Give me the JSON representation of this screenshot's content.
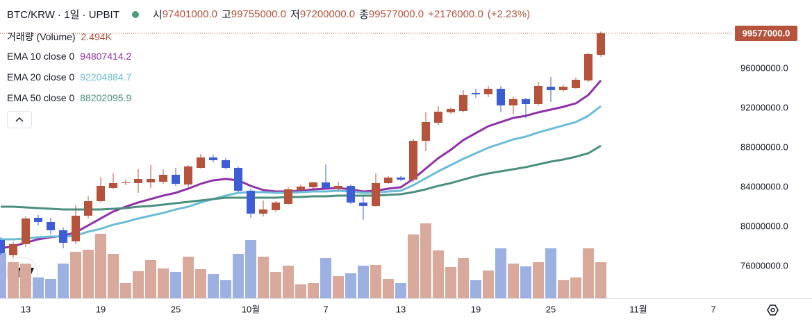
{
  "chart_data": {
    "type": "candlestick",
    "title": "BTC/KRW · 1일 · UPBIT",
    "categories": [
      null,
      null,
      "13",
      null,
      null,
      null,
      null,
      null,
      "19",
      null,
      null,
      null,
      null,
      null,
      "25",
      null,
      null,
      null,
      null,
      null,
      "10월",
      null,
      null,
      null,
      null,
      null,
      "7",
      null,
      null,
      null,
      null,
      null,
      "13",
      null,
      null,
      null,
      null,
      null,
      "19",
      null,
      null,
      null,
      null,
      null,
      "25",
      null,
      null,
      null,
      null,
      null,
      null,
      "11월",
      null,
      null,
      null,
      null,
      null,
      "7",
      null
    ],
    "open": [
      78667000,
      77123000,
      78246000,
      80912000,
      80491000,
      79649000,
      78526000,
      81123000,
      82597000,
      83930000,
      84421000,
      84421000,
      84491000,
      84561000,
      85263000,
      84281000,
      85965000,
      87018000,
      86737000,
      85965000,
      83649000,
      81333000,
      81684000,
      82316000,
      83719000,
      84000000,
      84491000,
      83860000,
      84140000,
      82456000,
      82105000,
      84421000,
      84983000,
      84772000,
      88702000,
      90526000,
      91579000,
      91719000,
      93544000,
      93404000,
      93965000,
      92281000,
      92912000,
      92421000,
      94175000,
      93825000,
      94035000,
      94807000,
      97401000,
      null,
      null,
      null,
      null,
      null,
      null,
      null,
      null,
      null,
      null
    ],
    "high": [
      78947000,
      78456000,
      81053000,
      81193000,
      80912000,
      79930000,
      82176000,
      83088000,
      85053000,
      85404000,
      84772000,
      85825000,
      86246000,
      85825000,
      85965000,
      86246000,
      87368000,
      87298000,
      86947000,
      86105000,
      83860000,
      82667000,
      82597000,
      84000000,
      84281000,
      84561000,
      86316000,
      84561000,
      84281000,
      83158000,
      85404000,
      85123000,
      85123000,
      88912000,
      91579000,
      92211000,
      92070000,
      93825000,
      93965000,
      94246000,
      94246000,
      93123000,
      93053000,
      94667000,
      95158000,
      94386000,
      95088000,
      97614000,
      99755000,
      null,
      null,
      null,
      null,
      null,
      null,
      null,
      null,
      null,
      null
    ],
    "low": [
      77123000,
      76842000,
      77965000,
      80140000,
      79228000,
      77825000,
      78246000,
      80842000,
      82456000,
      83790000,
      84211000,
      83439000,
      83930000,
      84351000,
      84140000,
      84000000,
      85895000,
      86526000,
      85825000,
      83509000,
      80912000,
      81053000,
      81474000,
      82246000,
      83579000,
      83860000,
      83860000,
      83649000,
      82316000,
      80702000,
      82035000,
      84351000,
      84632000,
      84561000,
      87649000,
      90316000,
      91439000,
      91579000,
      93053000,
      93123000,
      91579000,
      91368000,
      91018000,
      92281000,
      92632000,
      93684000,
      93965000,
      94667000,
      97200000,
      null,
      null,
      null,
      null,
      null,
      null,
      null,
      null,
      null,
      null
    ],
    "close": [
      77333000,
      78246000,
      80842000,
      80491000,
      79649000,
      78386000,
      81123000,
      82597000,
      84140000,
      84421000,
      84491000,
      84842000,
      84842000,
      85263000,
      84351000,
      86105000,
      87018000,
      86737000,
      85965000,
      83649000,
      81333000,
      81754000,
      82456000,
      83790000,
      84070000,
      84491000,
      83930000,
      84140000,
      82456000,
      82105000,
      84421000,
      84983000,
      84772000,
      88702000,
      90597000,
      91649000,
      91930000,
      93333000,
      93404000,
      93965000,
      92281000,
      92912000,
      92421000,
      94246000,
      93825000,
      94175000,
      94877000,
      97474000,
      99577000,
      null,
      null,
      null,
      null,
      null,
      null,
      null,
      null,
      null,
      null
    ],
    "ohlc_names": {
      "open": "시",
      "high": "고",
      "low": "저",
      "close": "종"
    },
    "ohlc_value_labels": {
      "open": "97401000.0",
      "high": "99755000.0",
      "low": "97200000.0",
      "close": "99577000.0"
    },
    "change": 2176000,
    "change_label": "+2176000.0",
    "change_pct": 2.23,
    "change_pct_label": "(+2.23%)",
    "up_color": "#b5533c",
    "down_color": "#3c5dd6",
    "volume": {
      "name": "거래량 (Volume)",
      "up_color": "#d9a99b",
      "down_color": "#9cb1e2",
      "values": [
        3120,
        2496,
        2400,
        1440,
        1344,
        2400,
        3216,
        3360,
        4464,
        3072,
        1056,
        1872,
        2640,
        2064,
        1824,
        2880,
        2016,
        1680,
        1248,
        3072,
        4032,
        2880,
        1824,
        2256,
        960,
        1056,
        2784,
        1536,
        1728,
        2256,
        2304,
        1344,
        1056,
        4416,
        5184,
        3312,
        2160,
        2784,
        1248,
        1920,
        3456,
        2400,
        2208,
        2496,
        3456,
        1248,
        1440,
        3456,
        2494,
        null,
        null,
        null,
        null,
        null,
        null,
        null,
        null,
        null,
        null
      ],
      "value_label": "2.494K"
    },
    "series": [
      {
        "name": "EMA 10 close 0",
        "color": "#9030a8",
        "value_label": "94807414.2",
        "values": [
          77825000,
          78035000,
          78386000,
          78737000,
          78947000,
          79088000,
          79439000,
          80140000,
          80842000,
          81544000,
          82035000,
          82456000,
          82807000,
          83158000,
          83439000,
          83860000,
          84351000,
          84702000,
          84842000,
          84702000,
          84140000,
          83719000,
          83579000,
          83579000,
          83649000,
          83790000,
          83860000,
          83930000,
          83790000,
          83579000,
          83649000,
          83860000,
          84000000,
          84842000,
          85895000,
          86947000,
          87790000,
          88772000,
          89474000,
          90175000,
          90597000,
          91018000,
          91228000,
          91579000,
          91860000,
          92140000,
          92491000,
          93333000,
          94807414.2,
          null,
          null,
          null,
          null,
          null,
          null,
          null,
          null,
          null,
          null
        ]
      },
      {
        "name": "EMA 20 close 0",
        "color": "#6bbcd6",
        "value_label": "92204884.7",
        "values": [
          78737000,
          78737000,
          78807000,
          78947000,
          79018000,
          79018000,
          79088000,
          79509000,
          79790000,
          80211000,
          80491000,
          80842000,
          81123000,
          81404000,
          81754000,
          82035000,
          82456000,
          82807000,
          83158000,
          83439000,
          83509000,
          83509000,
          83439000,
          83439000,
          83509000,
          83579000,
          83579000,
          83649000,
          83579000,
          83439000,
          83439000,
          83579000,
          83649000,
          84211000,
          84912000,
          85614000,
          86246000,
          86877000,
          87439000,
          88000000,
          88421000,
          88842000,
          89123000,
          89544000,
          89895000,
          90246000,
          90597000,
          91228000,
          92204884.7,
          null,
          null,
          null,
          null,
          null,
          null,
          null,
          null,
          null,
          null
        ]
      },
      {
        "name": "EMA 50 close 0",
        "color": "#4a8f7e",
        "value_label": "88202095.9",
        "values": [
          82035000,
          82035000,
          81965000,
          81895000,
          81825000,
          81754000,
          81754000,
          81754000,
          81754000,
          81825000,
          81895000,
          82035000,
          82105000,
          82246000,
          82386000,
          82526000,
          82667000,
          82807000,
          82947000,
          82947000,
          82947000,
          82947000,
          82947000,
          83018000,
          83018000,
          83088000,
          83088000,
          83158000,
          83158000,
          83158000,
          83158000,
          83228000,
          83298000,
          83509000,
          83790000,
          84140000,
          84421000,
          84772000,
          85123000,
          85404000,
          85614000,
          85825000,
          86035000,
          86316000,
          86597000,
          86807000,
          87088000,
          87439000,
          88202095.9,
          null,
          null,
          null,
          null,
          null,
          null,
          null,
          null,
          null,
          null
        ]
      }
    ],
    "ylim": [
      72770000,
      100140000
    ],
    "yticks": [
      {
        "value": 76000000,
        "label": "76000000.0"
      },
      {
        "value": 80000000,
        "label": "80000000.0"
      },
      {
        "value": 84000000,
        "label": "84000000.0"
      },
      {
        "value": 88000000,
        "label": "88000000.0"
      },
      {
        "value": 92000000,
        "label": "92000000.0"
      },
      {
        "value": 96000000,
        "label": "96000000.0"
      }
    ],
    "grid": false
  }
}
